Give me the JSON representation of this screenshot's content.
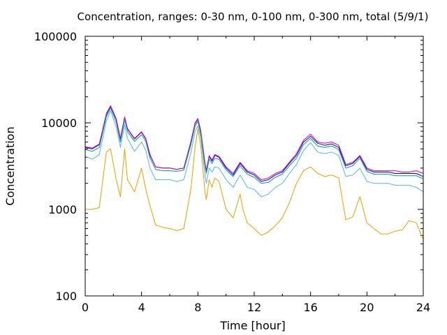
{
  "chart_data": {
    "type": "line",
    "title": "Concentration, ranges: 0-30 nm, 0-100 nm, 0-300 nm, total (5/9/1)",
    "xlabel": "Time [hour]",
    "ylabel": "Concentration",
    "xlim": [
      0,
      24
    ],
    "ylim": [
      100,
      100000
    ],
    "yscale": "log",
    "grid": false,
    "legend": "none",
    "x_ticks": [
      "0",
      "4",
      "8",
      "12",
      "16",
      "20",
      "24"
    ],
    "y_ticks": [
      "100",
      "1000",
      "10000",
      "100000"
    ],
    "x": [
      0,
      0.5,
      1.0,
      1.5,
      1.8,
      2.2,
      2.5,
      2.8,
      3.0,
      3.5,
      4.0,
      4.3,
      4.6,
      5.0,
      5.5,
      6.0,
      6.5,
      7.0,
      7.5,
      7.8,
      8.0,
      8.2,
      8.5,
      8.6,
      8.8,
      9.0,
      9.2,
      9.5,
      10.0,
      10.5,
      11.0,
      11.2,
      11.5,
      12.0,
      12.5,
      13.0,
      13.5,
      14.0,
      14.5,
      15.0,
      15.5,
      16.0,
      16.5,
      17.0,
      17.5,
      18.0,
      18.5,
      19.0,
      19.5,
      20.0,
      20.5,
      21.0,
      21.5,
      22.0,
      22.5,
      23.0,
      23.5,
      24.0
    ],
    "series": [
      {
        "color": "#0000cc",
        "values": [
          5200,
          5000,
          5600,
          12500,
          15500,
          11000,
          6500,
          11500,
          8500,
          6500,
          7800,
          6500,
          4200,
          3100,
          3000,
          3000,
          2900,
          3000,
          6000,
          9800,
          11000,
          8000,
          3400,
          2800,
          4100,
          3600,
          4200,
          4000,
          3000,
          2500,
          3400,
          3100,
          2700,
          2500,
          2100,
          2200,
          2500,
          2700,
          3400,
          4200,
          6000,
          7000,
          5800,
          5500,
          5700,
          5200,
          3200,
          3400,
          4100,
          2900,
          2700,
          2700,
          2700,
          2600,
          2600,
          2600,
          2600,
          2400
        ]
      },
      {
        "color": "#cc00cc",
        "values": [
          5300,
          5100,
          5700,
          12800,
          15800,
          11200,
          6600,
          11700,
          8600,
          6600,
          7900,
          6600,
          4300,
          3100,
          3000,
          3000,
          2900,
          3000,
          6100,
          10000,
          11200,
          8200,
          3500,
          2800,
          4200,
          3700,
          4300,
          4100,
          3100,
          2600,
          3500,
          3200,
          2800,
          2600,
          2200,
          2300,
          2600,
          2800,
          3500,
          4400,
          6300,
          7400,
          6000,
          5800,
          6000,
          5500,
          3300,
          3500,
          4200,
          3000,
          2800,
          2800,
          2800,
          2800,
          2700,
          2700,
          2800,
          2600
        ]
      },
      {
        "color": "#009e73",
        "values": [
          4900,
          4700,
          5200,
          11800,
          14800,
          10200,
          6000,
          10900,
          7900,
          6100,
          7300,
          6100,
          3900,
          2900,
          2800,
          2800,
          2750,
          2850,
          5600,
          9200,
          10400,
          7500,
          3200,
          2600,
          3800,
          3400,
          3900,
          3800,
          2850,
          2400,
          3200,
          2900,
          2550,
          2350,
          2000,
          2050,
          2350,
          2550,
          3200,
          3900,
          5600,
          6600,
          5400,
          5200,
          5400,
          4900,
          3000,
          3200,
          3900,
          2750,
          2550,
          2550,
          2550,
          2450,
          2450,
          2450,
          2450,
          2250
        ]
      },
      {
        "color": "#56b4e9",
        "values": [
          4100,
          3800,
          4300,
          10500,
          13800,
          9000,
          5200,
          9500,
          6600,
          4700,
          6000,
          4800,
          3000,
          2200,
          2200,
          2200,
          2100,
          2200,
          4500,
          8000,
          9200,
          6800,
          2500,
          2000,
          3000,
          2700,
          3100,
          3000,
          2200,
          1800,
          2500,
          2200,
          1800,
          1700,
          1400,
          1500,
          1800,
          2000,
          2600,
          3300,
          4800,
          5900,
          4600,
          4400,
          4600,
          4200,
          2400,
          2500,
          3000,
          2100,
          2000,
          2000,
          2000,
          1900,
          1900,
          1900,
          1800,
          1600
        ]
      },
      {
        "color": "#e69f00",
        "values": [
          1000,
          1000,
          1050,
          4600,
          5000,
          2200,
          1400,
          5000,
          2200,
          1600,
          3000,
          1700,
          1100,
          660,
          620,
          600,
          570,
          600,
          1700,
          5200,
          8500,
          5500,
          1600,
          1300,
          2200,
          1800,
          2300,
          2100,
          1000,
          800,
          1500,
          1000,
          700,
          600,
          500,
          550,
          650,
          800,
          1200,
          2000,
          2800,
          3100,
          2600,
          2400,
          2500,
          2300,
          760,
          820,
          1400,
          700,
          600,
          520,
          520,
          560,
          580,
          740,
          700,
          450
        ]
      }
    ]
  }
}
